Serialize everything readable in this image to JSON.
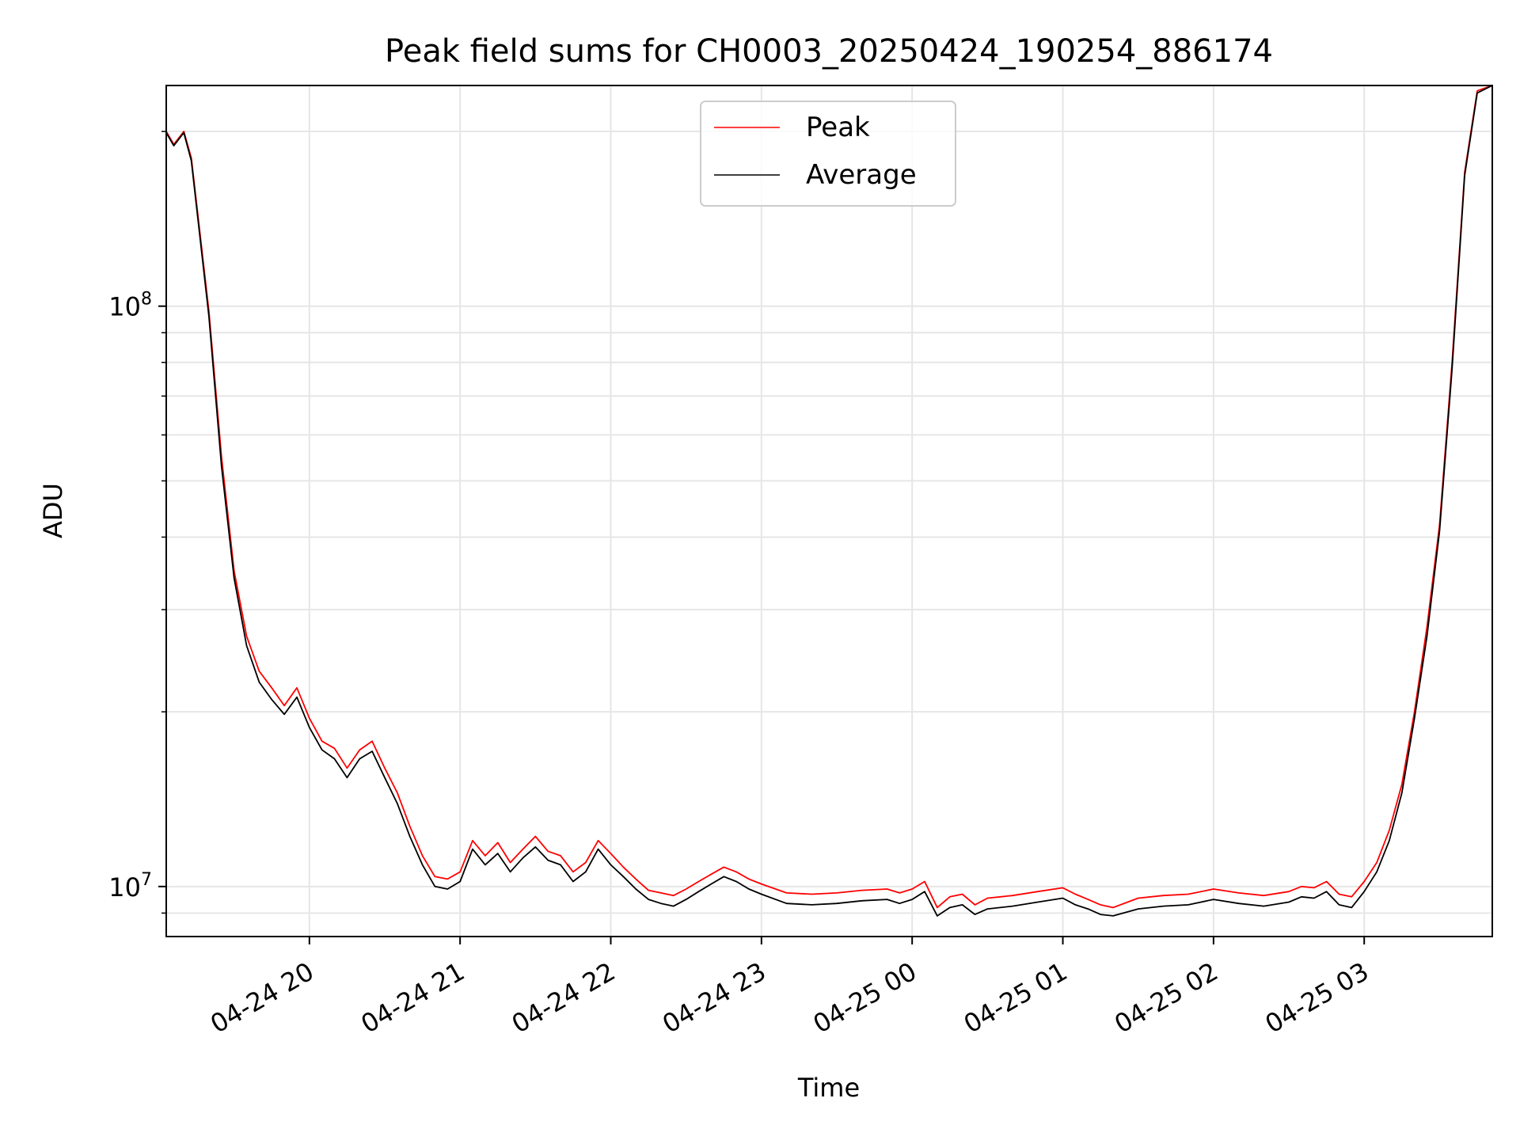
{
  "chart_data": {
    "type": "line",
    "title": "Peak field sums for CH0003_20250424_190254_886174",
    "xlabel": "Time",
    "ylabel": "ADU",
    "xlim": [
      "2025-04-24 19:03",
      "2025-04-25 03:51"
    ],
    "ylim": [
      8200000,
      240000000
    ],
    "yscale": "log",
    "grid": true,
    "legend": "upper center",
    "xticks": [
      {
        "value": "2025-04-24 20:00",
        "label": "04-24 20"
      },
      {
        "value": "2025-04-24 21:00",
        "label": "04-24 21"
      },
      {
        "value": "2025-04-24 22:00",
        "label": "04-24 22"
      },
      {
        "value": "2025-04-24 23:00",
        "label": "04-24 23"
      },
      {
        "value": "2025-04-25 00:00",
        "label": "04-25 00"
      },
      {
        "value": "2025-04-25 01:00",
        "label": "04-25 01"
      },
      {
        "value": "2025-04-25 02:00",
        "label": "04-25 02"
      },
      {
        "value": "2025-04-25 03:00",
        "label": "04-25 03"
      }
    ],
    "yticks": [
      {
        "value": 10000000,
        "base": "10",
        "exp": "7"
      },
      {
        "value": 100000000,
        "base": "10",
        "exp": "8"
      }
    ],
    "series": [
      {
        "name": "Peak",
        "color": "#ff0000",
        "x": [
          "2025-04-24 19:03",
          "2025-04-24 19:06",
          "2025-04-24 19:10",
          "2025-04-24 19:13",
          "2025-04-24 19:20",
          "2025-04-24 19:25",
          "2025-04-24 19:30",
          "2025-04-24 19:35",
          "2025-04-24 19:40",
          "2025-04-24 19:45",
          "2025-04-24 19:50",
          "2025-04-24 19:55",
          "2025-04-24 20:00",
          "2025-04-24 20:05",
          "2025-04-24 20:10",
          "2025-04-24 20:15",
          "2025-04-24 20:20",
          "2025-04-24 20:25",
          "2025-04-24 20:30",
          "2025-04-24 20:35",
          "2025-04-24 20:40",
          "2025-04-24 20:45",
          "2025-04-24 20:50",
          "2025-04-24 20:55",
          "2025-04-24 21:00",
          "2025-04-24 21:05",
          "2025-04-24 21:10",
          "2025-04-24 21:15",
          "2025-04-24 21:20",
          "2025-04-24 21:25",
          "2025-04-24 21:30",
          "2025-04-24 21:35",
          "2025-04-24 21:40",
          "2025-04-24 21:45",
          "2025-04-24 21:50",
          "2025-04-24 21:55",
          "2025-04-24 22:00",
          "2025-04-24 22:05",
          "2025-04-24 22:10",
          "2025-04-24 22:15",
          "2025-04-24 22:20",
          "2025-04-24 22:25",
          "2025-04-24 22:30",
          "2025-04-24 22:35",
          "2025-04-24 22:40",
          "2025-04-24 22:45",
          "2025-04-24 22:50",
          "2025-04-24 22:55",
          "2025-04-24 23:00",
          "2025-04-24 23:10",
          "2025-04-24 23:20",
          "2025-04-24 23:30",
          "2025-04-24 23:40",
          "2025-04-24 23:50",
          "2025-04-24 23:55",
          "2025-04-25 00:00",
          "2025-04-25 00:05",
          "2025-04-25 00:10",
          "2025-04-25 00:15",
          "2025-04-25 00:20",
          "2025-04-25 00:25",
          "2025-04-25 00:30",
          "2025-04-25 00:40",
          "2025-04-25 00:50",
          "2025-04-25 01:00",
          "2025-04-25 01:05",
          "2025-04-25 01:10",
          "2025-04-25 01:15",
          "2025-04-25 01:20",
          "2025-04-25 01:30",
          "2025-04-25 01:40",
          "2025-04-25 01:50",
          "2025-04-25 02:00",
          "2025-04-25 02:10",
          "2025-04-25 02:20",
          "2025-04-25 02:30",
          "2025-04-25 02:35",
          "2025-04-25 02:40",
          "2025-04-25 02:45",
          "2025-04-25 02:50",
          "2025-04-25 02:55",
          "2025-04-25 03:00",
          "2025-04-25 03:05",
          "2025-04-25 03:10",
          "2025-04-25 03:15",
          "2025-04-25 03:20",
          "2025-04-25 03:25",
          "2025-04-25 03:30",
          "2025-04-25 03:35",
          "2025-04-25 03:40",
          "2025-04-25 03:45",
          "2025-04-25 03:51"
        ],
        "values": [
          200000000,
          190000000,
          200000000,
          180000000,
          98000000,
          55000000,
          35000000,
          27000000,
          23500000,
          22000000,
          20500000,
          22000000,
          19500000,
          17800000,
          17300000,
          16000000,
          17200000,
          17800000,
          16000000,
          14500000,
          12700000,
          11300000,
          10400000,
          10300000,
          10600000,
          12000000,
          11300000,
          11900000,
          11000000,
          11600000,
          12200000,
          11500000,
          11300000,
          10600000,
          11000000,
          12000000,
          11400000,
          10800000,
          10300000,
          9850000,
          9750000,
          9650000,
          9900000,
          10200000,
          10500000,
          10800000,
          10600000,
          10300000,
          10100000,
          9750000,
          9700000,
          9750000,
          9850000,
          9900000,
          9750000,
          9900000,
          10200000,
          9200000,
          9600000,
          9700000,
          9300000,
          9550000,
          9650000,
          9800000,
          9950000,
          9700000,
          9500000,
          9300000,
          9200000,
          9550000,
          9650000,
          9700000,
          9900000,
          9750000,
          9650000,
          9800000,
          10000000,
          9950000,
          10200000,
          9700000,
          9600000,
          10200000,
          11000000,
          12500000,
          15000000,
          20000000,
          28000000,
          42000000,
          80000000,
          170000000,
          235000000,
          240000000
        ]
      },
      {
        "name": "Average",
        "color": "#000000",
        "x": [
          "2025-04-24 19:03",
          "2025-04-24 19:06",
          "2025-04-24 19:10",
          "2025-04-24 19:13",
          "2025-04-24 19:20",
          "2025-04-24 19:25",
          "2025-04-24 19:30",
          "2025-04-24 19:35",
          "2025-04-24 19:40",
          "2025-04-24 19:45",
          "2025-04-24 19:50",
          "2025-04-24 19:55",
          "2025-04-24 20:00",
          "2025-04-24 20:05",
          "2025-04-24 20:10",
          "2025-04-24 20:15",
          "2025-04-24 20:20",
          "2025-04-24 20:25",
          "2025-04-24 20:30",
          "2025-04-24 20:35",
          "2025-04-24 20:40",
          "2025-04-24 20:45",
          "2025-04-24 20:50",
          "2025-04-24 20:55",
          "2025-04-24 21:00",
          "2025-04-24 21:05",
          "2025-04-24 21:10",
          "2025-04-24 21:15",
          "2025-04-24 21:20",
          "2025-04-24 21:25",
          "2025-04-24 21:30",
          "2025-04-24 21:35",
          "2025-04-24 21:40",
          "2025-04-24 21:45",
          "2025-04-24 21:50",
          "2025-04-24 21:55",
          "2025-04-24 22:00",
          "2025-04-24 22:05",
          "2025-04-24 22:10",
          "2025-04-24 22:15",
          "2025-04-24 22:20",
          "2025-04-24 22:25",
          "2025-04-24 22:30",
          "2025-04-24 22:35",
          "2025-04-24 22:40",
          "2025-04-24 22:45",
          "2025-04-24 22:50",
          "2025-04-24 22:55",
          "2025-04-24 23:00",
          "2025-04-24 23:10",
          "2025-04-24 23:20",
          "2025-04-24 23:30",
          "2025-04-24 23:40",
          "2025-04-24 23:50",
          "2025-04-24 23:55",
          "2025-04-25 00:00",
          "2025-04-25 00:05",
          "2025-04-25 00:10",
          "2025-04-25 00:15",
          "2025-04-25 00:20",
          "2025-04-25 00:25",
          "2025-04-25 00:30",
          "2025-04-25 00:40",
          "2025-04-25 00:50",
          "2025-04-25 01:00",
          "2025-04-25 01:05",
          "2025-04-25 01:10",
          "2025-04-25 01:15",
          "2025-04-25 01:20",
          "2025-04-25 01:30",
          "2025-04-25 01:40",
          "2025-04-25 01:50",
          "2025-04-25 02:00",
          "2025-04-25 02:10",
          "2025-04-25 02:20",
          "2025-04-25 02:30",
          "2025-04-25 02:35",
          "2025-04-25 02:40",
          "2025-04-25 02:45",
          "2025-04-25 02:50",
          "2025-04-25 02:55",
          "2025-04-25 03:00",
          "2025-04-25 03:05",
          "2025-04-25 03:10",
          "2025-04-25 03:15",
          "2025-04-25 03:20",
          "2025-04-25 03:25",
          "2025-04-25 03:30",
          "2025-04-25 03:35",
          "2025-04-25 03:40",
          "2025-04-25 03:45",
          "2025-04-25 03:51"
        ],
        "values": [
          199000000,
          189000000,
          199000000,
          178000000,
          96000000,
          53000000,
          34000000,
          26000000,
          22500000,
          21000000,
          19800000,
          21200000,
          18800000,
          17200000,
          16600000,
          15400000,
          16600000,
          17100000,
          15400000,
          13900000,
          12200000,
          10900000,
          10000000,
          9900000,
          10200000,
          11600000,
          10900000,
          11400000,
          10600000,
          11200000,
          11700000,
          11100000,
          10900000,
          10200000,
          10600000,
          11600000,
          10900000,
          10400000,
          9900000,
          9500000,
          9350000,
          9250000,
          9500000,
          9800000,
          10100000,
          10400000,
          10200000,
          9900000,
          9700000,
          9350000,
          9300000,
          9350000,
          9450000,
          9500000,
          9350000,
          9500000,
          9800000,
          8900000,
          9200000,
          9300000,
          8950000,
          9150000,
          9250000,
          9400000,
          9550000,
          9300000,
          9150000,
          8950000,
          8900000,
          9150000,
          9250000,
          9300000,
          9500000,
          9350000,
          9250000,
          9400000,
          9600000,
          9550000,
          9800000,
          9300000,
          9200000,
          9800000,
          10600000,
          12000000,
          14500000,
          19500000,
          27000000,
          41000000,
          78000000,
          168000000,
          233000000,
          240000000
        ]
      }
    ]
  }
}
